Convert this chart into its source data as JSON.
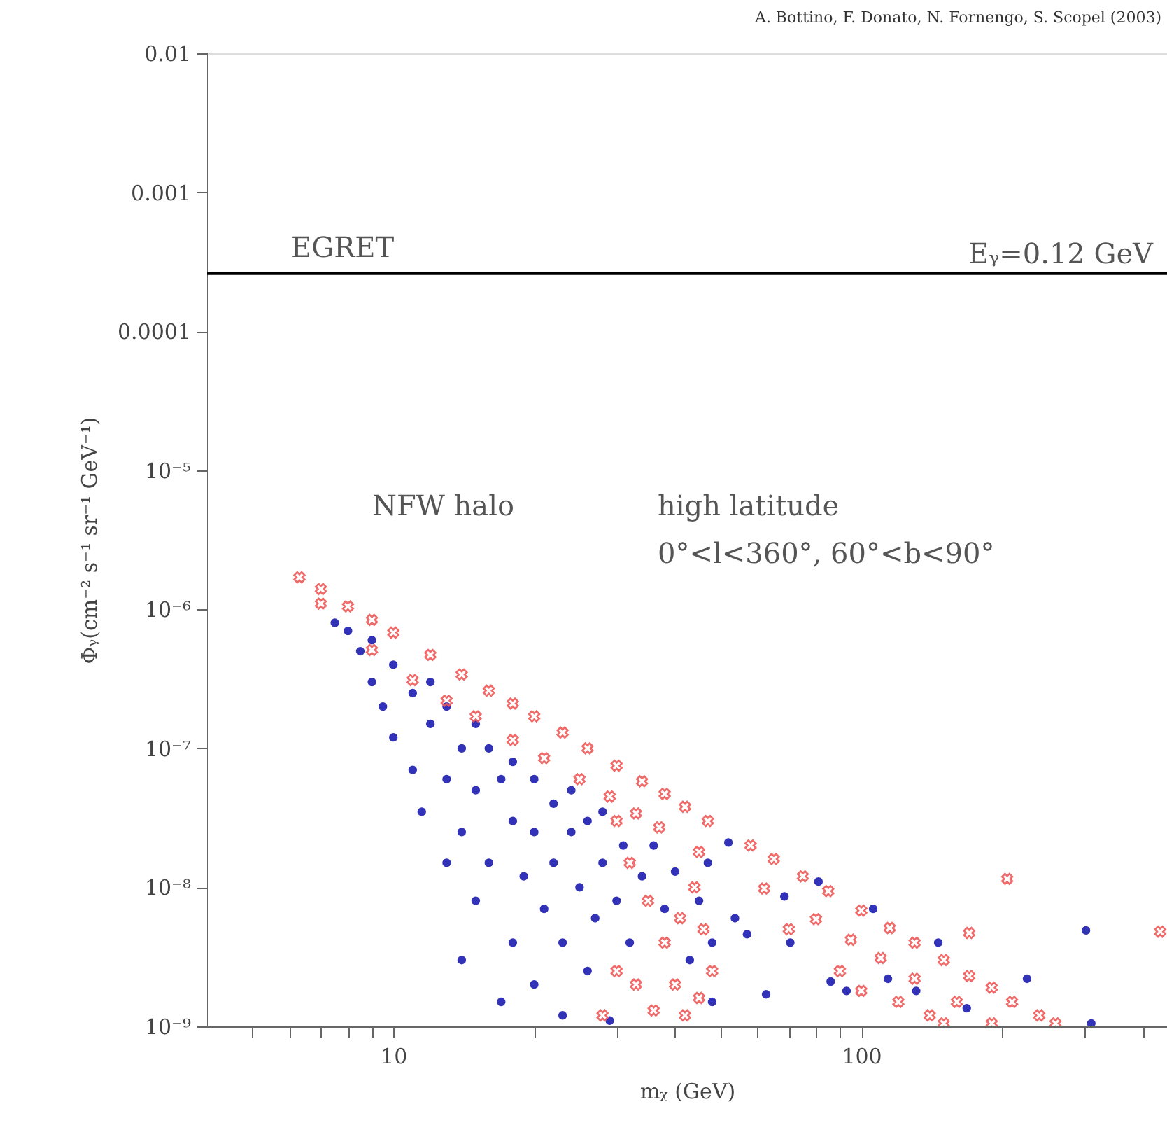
{
  "chart_data": {
    "type": "scatter",
    "xlabel": "mᵪ (GeV)",
    "ylabel": "Φᵧ(cm⁻² s⁻¹ sr⁻¹ GeV⁻¹)",
    "log": "xy",
    "grid": false,
    "xlim": [
      4,
      450
    ],
    "xticks": [
      {
        "value": 5,
        "label": null
      },
      {
        "value": 6,
        "label": null
      },
      {
        "value": 7,
        "label": null
      },
      {
        "value": 8,
        "label": null
      },
      {
        "value": 9,
        "label": null
      },
      10,
      {
        "value": 20,
        "label": null
      },
      {
        "value": 30,
        "label": null
      },
      {
        "value": 40,
        "label": null
      },
      {
        "value": 50,
        "label": null
      },
      {
        "value": 60,
        "label": null
      },
      {
        "value": 70,
        "label": null
      },
      {
        "value": 80,
        "label": null
      },
      {
        "value": 90,
        "label": null
      },
      100,
      {
        "value": 200,
        "label": null
      },
      {
        "value": 300,
        "label": null
      },
      {
        "value": 400,
        "label": null
      }
    ],
    "ylim": [
      1e-09,
      0.01
    ],
    "yticks": [
      {
        "value": 1e-09,
        "label": "10⁻⁹"
      },
      {
        "value": 1e-08,
        "label": "10⁻⁸"
      },
      {
        "value": 1e-07,
        "label": "10⁻⁷"
      },
      {
        "value": 1e-06,
        "label": "10⁻⁶"
      },
      {
        "value": 1e-05,
        "label": "10⁻⁵"
      },
      0.0001,
      0.001,
      0.01
    ],
    "ref_lines": [
      {
        "axis": "y",
        "value": 0.00026,
        "label": "EGRET",
        "color": "#000000"
      }
    ],
    "annotations": [
      "A. Bottino, F. Donato, N. Fornengo, S. Scopel (2003)",
      "Eᵧ=0.12 GeV",
      "NFW halo",
      "high latitude",
      "0°<l<360°, 60°<b<90°"
    ],
    "series": [
      {
        "color": "#1c1cb0",
        "marker": "circle",
        "x": [
          7.5,
          8,
          8.5,
          9,
          9,
          9.5,
          10,
          10,
          11,
          11,
          11.5,
          12,
          12,
          13,
          13,
          13,
          14,
          14,
          14,
          15,
          15,
          15,
          16,
          16,
          17,
          17,
          18,
          18,
          18,
          19,
          20,
          20,
          20,
          21,
          22,
          22,
          23,
          23,
          24,
          24,
          25,
          26,
          26,
          27,
          28,
          28,
          29,
          30,
          31,
          32,
          34,
          36,
          38,
          40,
          43,
          45,
          47,
          48,
          48,
          52,
          53.7,
          57,
          62.6,
          68.5,
          70.5,
          81,
          86,
          93,
          106,
          114,
          131,
          146,
          168,
          226,
          302,
          310
        ],
        "values": [
          8e-07,
          7e-07,
          5e-07,
          3e-07,
          6e-07,
          2e-07,
          4e-07,
          1.2e-07,
          2.5e-07,
          7e-08,
          3.5e-08,
          1.5e-07,
          3e-07,
          1.5e-08,
          6e-08,
          2e-07,
          1e-07,
          3e-09,
          2.5e-08,
          1.5e-07,
          5e-08,
          8e-09,
          1e-07,
          1.5e-08,
          1.5e-09,
          6e-08,
          8e-08,
          3e-08,
          4e-09,
          1.2e-08,
          6e-08,
          2e-09,
          2.5e-08,
          7e-09,
          4e-08,
          1.5e-08,
          1.2e-09,
          4e-09,
          5e-08,
          2.5e-08,
          1e-08,
          3e-08,
          2.5e-09,
          6e-09,
          1.5e-08,
          3.5e-08,
          1.1e-09,
          8e-09,
          2e-08,
          4e-09,
          1.2e-08,
          2e-08,
          7e-09,
          1.3e-08,
          3e-09,
          8e-09,
          1.5e-08,
          4e-09,
          1.5e-09,
          2.1e-08,
          6e-09,
          4.6e-09,
          1.7e-09,
          8.6e-09,
          4e-09,
          1.1e-08,
          2.1e-09,
          1.8e-09,
          7e-09,
          2.2e-09,
          1.8e-09,
          4e-09,
          1.35e-09,
          2.2e-09,
          4.9e-09,
          1.05e-09
        ]
      },
      {
        "color": "#f05a5a",
        "marker": "cross",
        "x": [
          6.3,
          7,
          8,
          9,
          10,
          12,
          14,
          16,
          18,
          20,
          23,
          26,
          30,
          34,
          38,
          42,
          47,
          58,
          65,
          75,
          85,
          100,
          115,
          130,
          150,
          170,
          190,
          210,
          240,
          260,
          7,
          9,
          11,
          13,
          15,
          18,
          21,
          25,
          29,
          33,
          37,
          45,
          62,
          80,
          95,
          110,
          130,
          160,
          190,
          30,
          32,
          35,
          38,
          40,
          42,
          44,
          46,
          48,
          33,
          36,
          45,
          28,
          30,
          41,
          90,
          120,
          140,
          100,
          70,
          150,
          205,
          435,
          170
        ],
        "values": [
          1.7e-06,
          1.4e-06,
          1.05e-06,
          8.4e-07,
          6.8e-07,
          4.7e-07,
          3.4e-07,
          2.6e-07,
          2.1e-07,
          1.7e-07,
          1.3e-07,
          1e-07,
          7.5e-08,
          5.8e-08,
          4.7e-08,
          3.8e-08,
          3e-08,
          2e-08,
          1.6e-08,
          1.2e-08,
          9.4e-09,
          6.8e-09,
          5.1e-09,
          4e-09,
          3e-09,
          2.3e-09,
          1.9e-09,
          1.5e-09,
          1.2e-09,
          1.05e-09,
          1.1e-06,
          5.1e-07,
          3.1e-07,
          2.2e-07,
          1.7e-07,
          1.15e-07,
          8.5e-08,
          6e-08,
          4.5e-08,
          3.4e-08,
          2.7e-08,
          1.8e-08,
          9.8e-09,
          5.9e-09,
          4.2e-09,
          3.1e-09,
          2.2e-09,
          1.5e-09,
          1.05e-09,
          3e-08,
          1.5e-08,
          8e-09,
          4e-09,
          2e-09,
          1.2e-09,
          1e-08,
          5e-09,
          2.5e-09,
          2e-09,
          1.3e-09,
          1.6e-09,
          1.2e-09,
          2.5e-09,
          6e-09,
          2.5e-09,
          1.5e-09,
          1.2e-09,
          1.8e-09,
          5e-09,
          1.05e-09,
          1.15e-08,
          4.8e-09,
          4.7e-09
        ]
      }
    ]
  }
}
